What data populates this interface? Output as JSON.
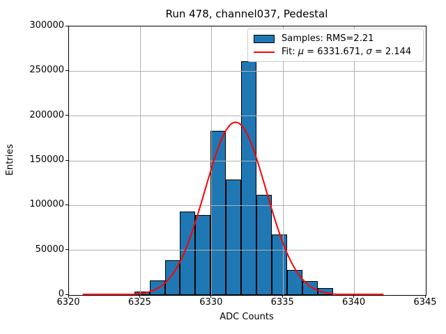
{
  "chart_data": {
    "type": "histogram",
    "title": "Run 478, channel037, Pedestal",
    "xlabel": "ADC Counts",
    "ylabel": "Entries",
    "xlim": [
      6320,
      6345
    ],
    "ylim": [
      0,
      300000
    ],
    "grid": true,
    "grid_color": "#b0b0b0",
    "bar_color": "#1f77b4",
    "bar_edge_color": "#000000",
    "bin_edges": [
      6323.5,
      6324.5714,
      6325.6429,
      6326.7143,
      6327.7857,
      6328.8571,
      6329.9286,
      6331.0,
      6332.0714,
      6333.1429,
      6334.2143,
      6335.2857,
      6336.3571,
      6337.4286,
      6338.5
    ],
    "counts": [
      1200,
      4000,
      16500,
      39000,
      93500,
      89000,
      183500,
      129000,
      261000,
      112000,
      67500,
      28000,
      15300,
      8000
    ],
    "fit": {
      "type": "gaussian",
      "mu": 6331.671,
      "sigma": 2.144,
      "amplitude": 193000,
      "x_range": [
        6321,
        6342
      ],
      "color": "#ff0000",
      "line_width": 2
    },
    "x_tick_values": [
      6320,
      6325,
      6330,
      6335,
      6340,
      6345
    ],
    "x_tick_labels": [
      "6320",
      "6325",
      "6330",
      "6335",
      "6340",
      "6345"
    ],
    "y_tick_values": [
      0,
      50000,
      100000,
      150000,
      200000,
      250000,
      300000
    ],
    "y_tick_labels": [
      "0",
      "50000",
      "100000",
      "150000",
      "200000",
      "250000",
      "300000"
    ],
    "legend": {
      "position": "upper right",
      "entries": [
        {
          "type": "patch",
          "label": "Samples: RMS=2.21"
        },
        {
          "type": "line",
          "label": "Fit: μ = 6331.671, σ = 2.144",
          "label_parts": [
            {
              "text": "Fit: ",
              "italic": false
            },
            {
              "text": "μ",
              "italic": true
            },
            {
              "text": " = 6331.671, ",
              "italic": false
            },
            {
              "text": "σ",
              "italic": true
            },
            {
              "text": " = 2.144",
              "italic": false
            }
          ]
        }
      ]
    }
  }
}
